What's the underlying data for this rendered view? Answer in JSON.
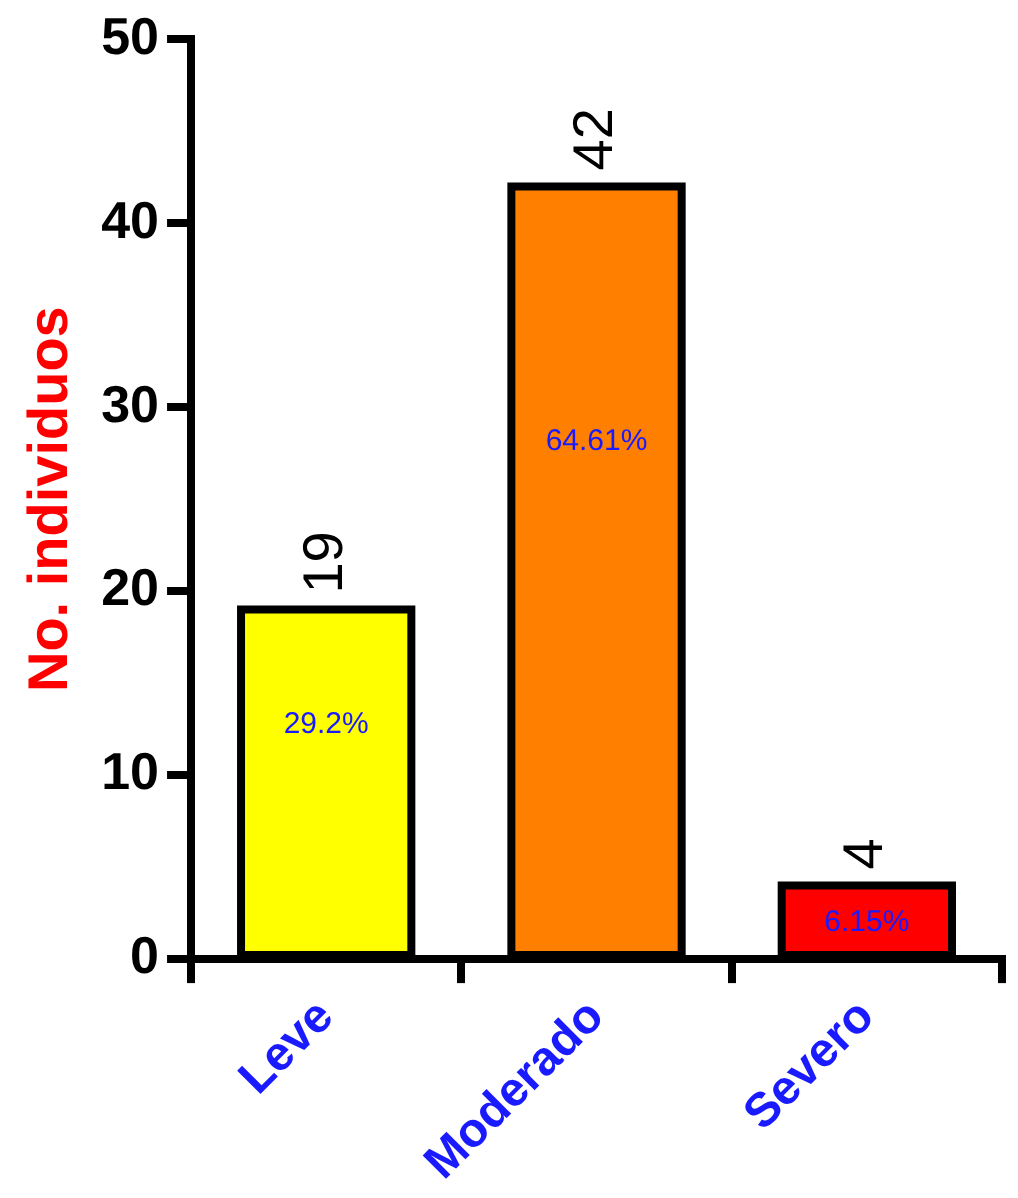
{
  "chart_data": {
    "type": "bar",
    "ylabel": "No. individuos",
    "categories": [
      "Leve",
      "Moderado",
      "Severo"
    ],
    "values": [
      19,
      42,
      4
    ],
    "colors": [
      "#ffff00",
      "#ff8000",
      "#ff0000"
    ],
    "ylim": [
      0,
      50
    ],
    "yticks": [
      0,
      10,
      20,
      30,
      40,
      50
    ],
    "grid": false,
    "legend": false,
    "data_labels": true,
    "annotations": [
      "29.2%",
      "64.61%",
      "6.15%"
    ]
  }
}
